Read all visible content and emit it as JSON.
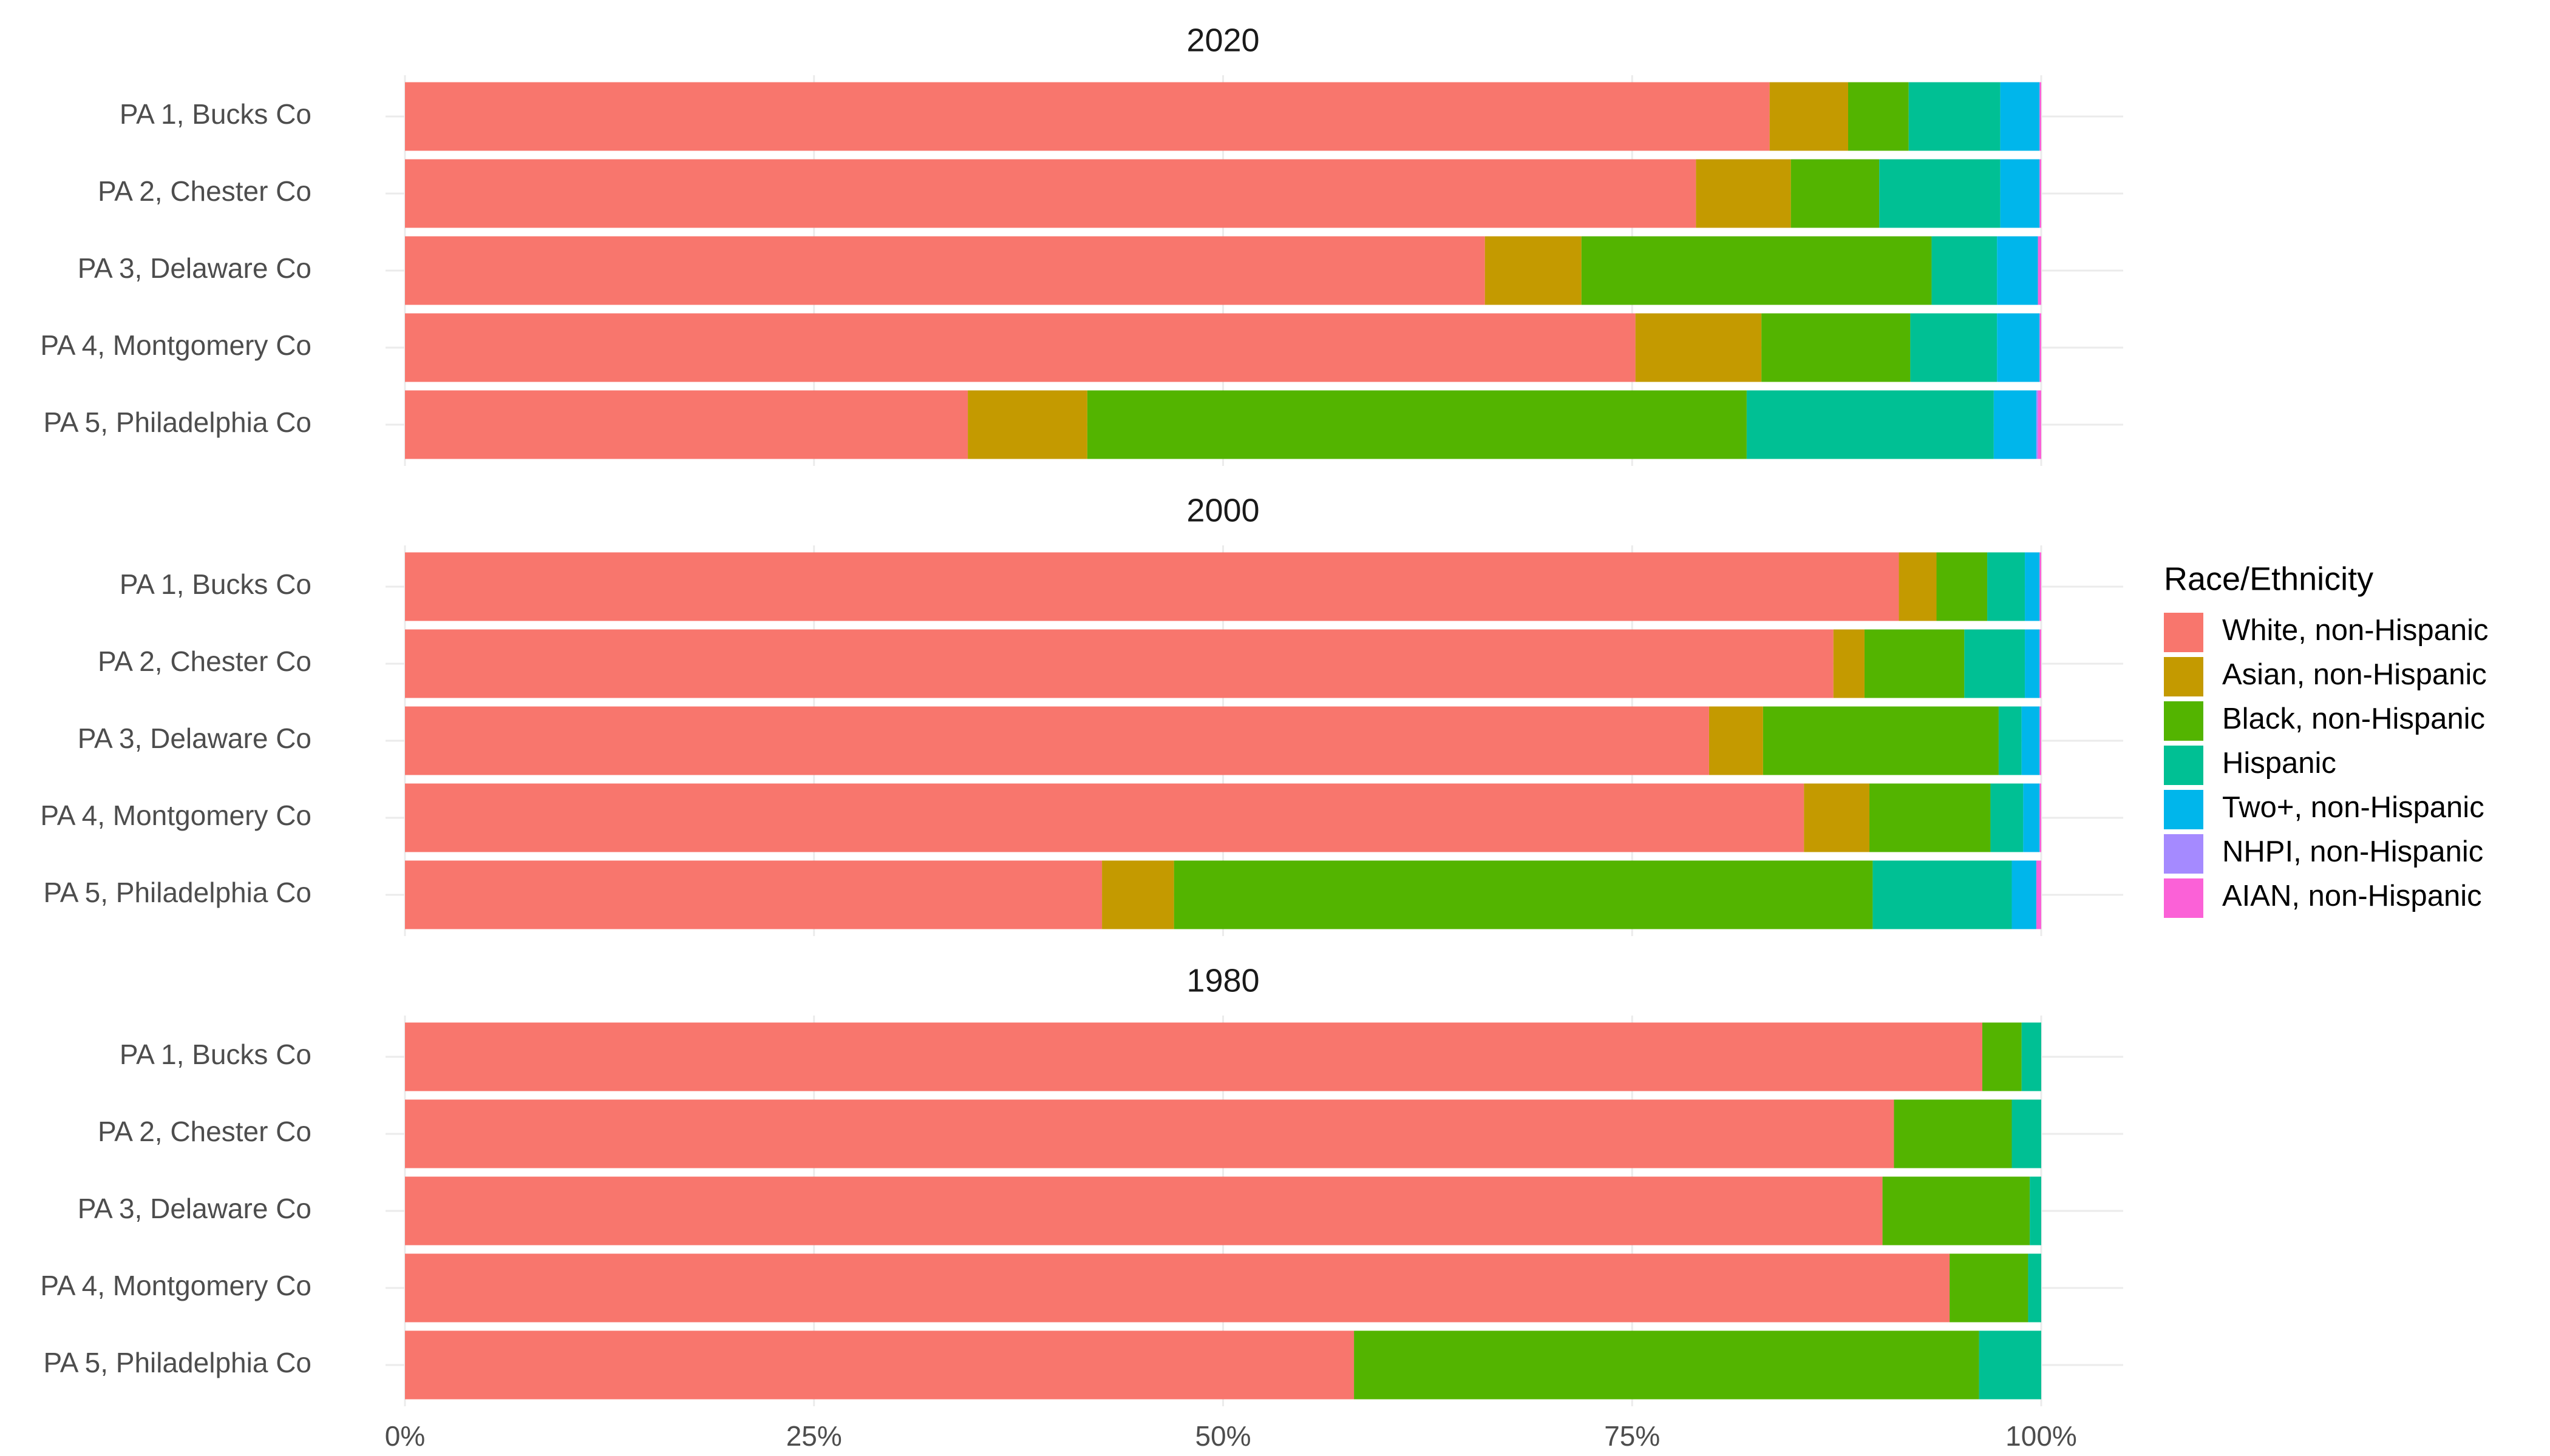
{
  "chart_data": {
    "type": "bar",
    "orientation": "horizontal",
    "stacked": true,
    "grid": true,
    "legend_position": "right",
    "legend_title": "Race/Ethnicity",
    "legend": [
      {
        "name": "White, non-Hispanic",
        "color": "#F8766D"
      },
      {
        "name": "Asian, non-Hispanic",
        "color": "#C49A00"
      },
      {
        "name": "Black, non-Hispanic",
        "color": "#53B400"
      },
      {
        "name": "Hispanic",
        "color": "#00C094"
      },
      {
        "name": "Two+, non-Hispanic",
        "color": "#00B6EB"
      },
      {
        "name": "NHPI, non-Hispanic",
        "color": "#A58AFF"
      },
      {
        "name": "AIAN, non-Hispanic",
        "color": "#FB61D7"
      }
    ],
    "xlim": [
      0,
      100
    ],
    "xticks": [
      {
        "value": 0,
        "label": "0%"
      },
      {
        "value": 25,
        "label": "25%"
      },
      {
        "value": 50,
        "label": "50%"
      },
      {
        "value": 75,
        "label": "75%"
      },
      {
        "value": 100,
        "label": "100%"
      }
    ],
    "facets": [
      {
        "title": "2020",
        "categories": [
          "PA 1, Bucks Co",
          "PA 2, Chester Co",
          "PA 3, Delaware Co",
          "PA 4, Montgomery Co",
          "PA 5, Philadelphia Co"
        ],
        "series": [
          {
            "values": [
              83.4,
              78.9,
              66.0,
              75.2,
              34.4
            ]
          },
          {
            "values": [
              4.8,
              5.8,
              5.9,
              7.7,
              7.3
            ]
          },
          {
            "values": [
              3.7,
              5.4,
              21.4,
              9.1,
              40.3
            ]
          },
          {
            "values": [
              5.6,
              7.4,
              4.0,
              5.3,
              15.1
            ]
          },
          {
            "values": [
              2.4,
              2.4,
              2.5,
              2.6,
              2.6
            ]
          },
          {
            "values": [
              0.0,
              0.0,
              0.0,
              0.0,
              0.1
            ]
          },
          {
            "values": [
              0.1,
              0.1,
              0.2,
              0.1,
              0.2
            ]
          }
        ]
      },
      {
        "title": "2000",
        "categories": [
          "PA 1, Bucks Co",
          "PA 2, Chester Co",
          "PA 3, Delaware Co",
          "PA 4, Montgomery Co",
          "PA 5, Philadelphia Co"
        ],
        "series": [
          {
            "values": [
              91.3,
              87.3,
              79.7,
              85.5,
              42.6
            ]
          },
          {
            "values": [
              2.3,
              1.9,
              3.3,
              4.0,
              4.4
            ]
          },
          {
            "values": [
              3.1,
              6.1,
              14.4,
              7.4,
              42.7
            ]
          },
          {
            "values": [
              2.3,
              3.7,
              1.4,
              2.0,
              8.5
            ]
          },
          {
            "values": [
              0.9,
              0.9,
              1.1,
              1.0,
              1.5
            ]
          },
          {
            "values": [
              0.0,
              0.0,
              0.0,
              0.0,
              0.0
            ]
          },
          {
            "values": [
              0.1,
              0.1,
              0.1,
              0.1,
              0.3
            ]
          }
        ]
      },
      {
        "title": "1980",
        "categories": [
          "PA 1, Bucks Co",
          "PA 2, Chester Co",
          "PA 3, Delaware Co",
          "PA 4, Montgomery Co",
          "PA 5, Philadelphia Co"
        ],
        "series": [
          {
            "values": [
              96.4,
              91.0,
              90.3,
              94.4,
              58.0
            ]
          },
          {
            "values": [
              null,
              null,
              null,
              null,
              null
            ]
          },
          {
            "values": [
              2.4,
              7.2,
              9.0,
              4.8,
              38.2
            ]
          },
          {
            "values": [
              1.2,
              1.8,
              0.7,
              0.8,
              3.8
            ]
          },
          {
            "values": [
              null,
              null,
              null,
              null,
              null
            ]
          },
          {
            "values": [
              null,
              null,
              null,
              null,
              null
            ]
          },
          {
            "values": [
              null,
              null,
              null,
              null,
              null
            ]
          }
        ]
      }
    ]
  }
}
